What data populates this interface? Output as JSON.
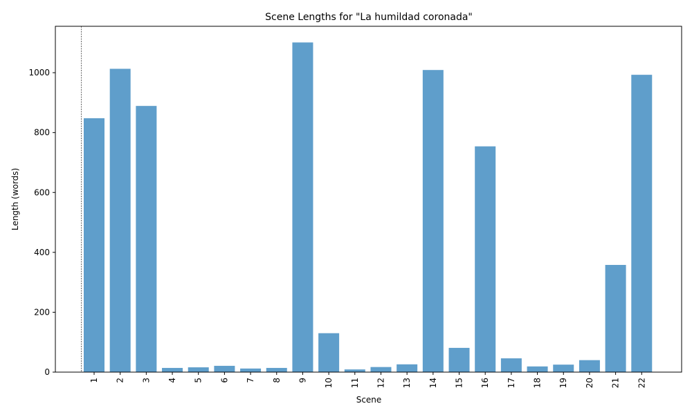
{
  "chart_data": {
    "type": "bar",
    "title": "Scene Lengths for \"La humildad coronada\"",
    "xlabel": "Scene",
    "ylabel": "Length (words)",
    "categories": [
      "1",
      "2",
      "3",
      "4",
      "5",
      "6",
      "7",
      "8",
      "9",
      "10",
      "11",
      "12",
      "13",
      "14",
      "15",
      "16",
      "17",
      "18",
      "19",
      "20",
      "21",
      "22"
    ],
    "values": [
      848,
      1013,
      889,
      14,
      16,
      21,
      12,
      14,
      1101,
      130,
      9,
      17,
      26,
      1009,
      81,
      754,
      46,
      19,
      25,
      40,
      358,
      993
    ],
    "ylim": [
      0,
      1155
    ],
    "yticks": [
      0,
      200,
      400,
      600,
      800,
      1000
    ],
    "bar_color": "#5f9ecb",
    "grid": false,
    "reference_line": {
      "style": "dashed",
      "color": "#000000"
    }
  }
}
